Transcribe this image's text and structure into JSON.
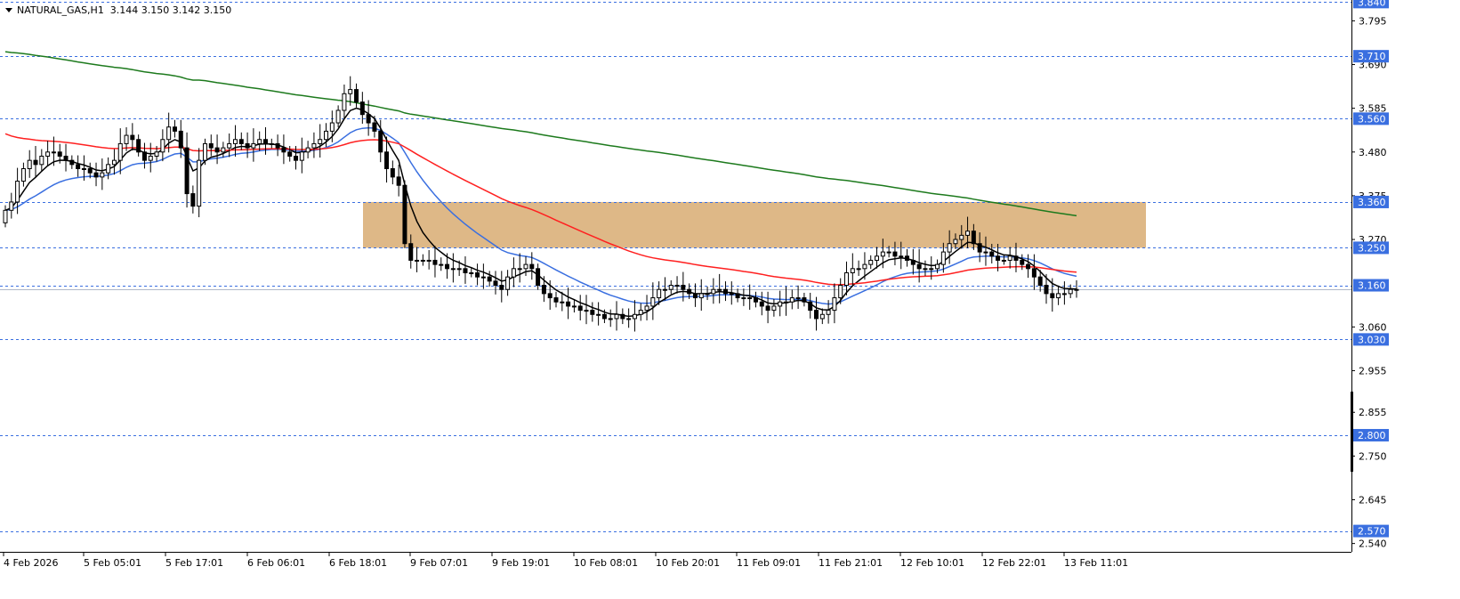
{
  "header": {
    "symbol_line": "NATURAL_GAS,H1  3.144 3.150 3.142 3.150"
  },
  "colors": {
    "background": "#ffffff",
    "candle": "#000000",
    "ma_fast": "#000000",
    "ma_mid": "#3a6fe0",
    "ma_slow": "#ff2020",
    "ma_long": "#1d7a1d",
    "zone": "#deb887",
    "level_line": "#3a6fe0",
    "badge": "#3a6fe0"
  },
  "chart_data": {
    "type": "candlestick",
    "symbol": "NATURAL_GAS",
    "timeframe": "H1",
    "ohlc_header": {
      "open": 3.144,
      "high": 3.15,
      "low": 3.142,
      "close": 3.15
    },
    "ylim": [
      2.52,
      3.845
    ],
    "y_ticks": [
      "3.795",
      "3.690",
      "3.585",
      "3.480",
      "3.375",
      "3.270",
      "3.060",
      "2.955",
      "2.855",
      "2.750",
      "2.645",
      "2.540"
    ],
    "x_ticks": [
      "4 Feb 2026",
      "5 Feb 05:01",
      "5 Feb 17:01",
      "6 Feb 06:01",
      "6 Feb 18:01",
      "9 Feb 07:01",
      "9 Feb 19:01",
      "10 Feb 08:01",
      "10 Feb 20:01",
      "11 Feb 09:01",
      "11 Feb 21:01",
      "12 Feb 10:01",
      "12 Feb 22:01",
      "13 Feb 11:01"
    ],
    "levels": [
      {
        "label": "3.840",
        "value": 3.84
      },
      {
        "label": "3.710",
        "value": 3.71
      },
      {
        "label": "3.560",
        "value": 3.56
      },
      {
        "label": "3.360",
        "value": 3.36
      },
      {
        "label": "3.250",
        "value": 3.25
      },
      {
        "label": "3.160",
        "value": 3.16
      },
      {
        "label": "3.030",
        "value": 3.03
      },
      {
        "label": "2.800",
        "value": 2.8
      },
      {
        "label": "2.570",
        "value": 2.57
      }
    ],
    "current_price": 3.15,
    "zone": {
      "top": 3.36,
      "bottom": 3.25
    },
    "close": [
      3.34,
      3.36,
      3.41,
      3.44,
      3.46,
      3.45,
      3.47,
      3.48,
      3.48,
      3.47,
      3.46,
      3.45,
      3.44,
      3.44,
      3.43,
      3.42,
      3.43,
      3.45,
      3.46,
      3.5,
      3.52,
      3.51,
      3.48,
      3.46,
      3.47,
      3.48,
      3.51,
      3.54,
      3.53,
      3.49,
      3.38,
      3.35,
      3.46,
      3.5,
      3.49,
      3.48,
      3.49,
      3.5,
      3.51,
      3.5,
      3.49,
      3.5,
      3.51,
      3.5,
      3.5,
      3.49,
      3.48,
      3.47,
      3.46,
      3.48,
      3.49,
      3.5,
      3.51,
      3.53,
      3.55,
      3.58,
      3.62,
      3.63,
      3.6,
      3.57,
      3.55,
      3.53,
      3.48,
      3.44,
      3.42,
      3.4,
      3.26,
      3.22,
      3.22,
      3.22,
      3.22,
      3.21,
      3.21,
      3.2,
      3.2,
      3.2,
      3.19,
      3.19,
      3.18,
      3.18,
      3.17,
      3.16,
      3.15,
      3.18,
      3.2,
      3.2,
      3.21,
      3.2,
      3.16,
      3.14,
      3.13,
      3.12,
      3.12,
      3.11,
      3.11,
      3.1,
      3.1,
      3.09,
      3.09,
      3.08,
      3.08,
      3.09,
      3.08,
      3.08,
      3.09,
      3.1,
      3.11,
      3.13,
      3.15,
      3.15,
      3.16,
      3.16,
      3.15,
      3.14,
      3.13,
      3.14,
      3.14,
      3.15,
      3.15,
      3.14,
      3.14,
      3.13,
      3.13,
      3.13,
      3.12,
      3.11,
      3.1,
      3.11,
      3.12,
      3.12,
      3.13,
      3.13,
      3.12,
      3.1,
      3.08,
      3.09,
      3.1,
      3.13,
      3.16,
      3.19,
      3.2,
      3.2,
      3.21,
      3.22,
      3.23,
      3.24,
      3.24,
      3.23,
      3.23,
      3.22,
      3.21,
      3.2,
      3.2,
      3.2,
      3.21,
      3.24,
      3.26,
      3.27,
      3.28,
      3.29,
      3.26,
      3.24,
      3.24,
      3.23,
      3.22,
      3.22,
      3.23,
      3.22,
      3.21,
      3.2,
      3.18,
      3.16,
      3.14,
      3.13,
      3.14,
      3.14,
      3.15,
      3.15
    ]
  }
}
